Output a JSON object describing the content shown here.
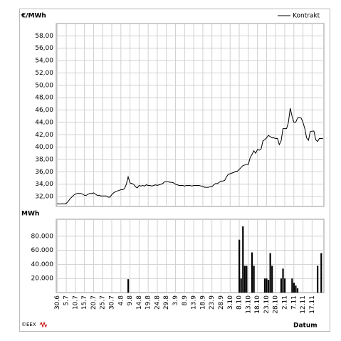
{
  "chart_data": [
    {
      "type": "line",
      "y_label": "€/MWh",
      "series": [
        {
          "name": "Kontrakt",
          "color": "#000000",
          "values": [
            30.85,
            30.8,
            30.8,
            30.85,
            30.8,
            30.9,
            31.2,
            31.6,
            31.9,
            32.2,
            32.4,
            32.5,
            32.5,
            32.5,
            32.4,
            32.2,
            32.2,
            32.4,
            32.5,
            32.5,
            32.6,
            32.4,
            32.2,
            32.2,
            32.1,
            32.1,
            32.1,
            32.1,
            31.9,
            31.9,
            32.3,
            32.6,
            32.8,
            32.9,
            33.0,
            33.1,
            33.1,
            33.3,
            34.0,
            35.2,
            34.2,
            34.1,
            34.0,
            33.6,
            33.4,
            33.8,
            33.7,
            33.8,
            33.7,
            33.9,
            33.8,
            33.8,
            33.7,
            33.8,
            33.9,
            33.8,
            33.9,
            34.0,
            34.1,
            34.4,
            34.4,
            34.4,
            34.3,
            34.3,
            34.2,
            34.0,
            33.9,
            33.8,
            33.8,
            33.8,
            33.7,
            33.8,
            33.8,
            33.8,
            33.7,
            33.8,
            33.8,
            33.8,
            33.8,
            33.7,
            33.7,
            33.5,
            33.5,
            33.5,
            33.6,
            33.6,
            33.9,
            34.1,
            34.1,
            34.3,
            34.5,
            34.5,
            34.6,
            35.2,
            35.6,
            35.7,
            35.8,
            35.9,
            36.1,
            36.1,
            36.4,
            36.7,
            37.0,
            37.1,
            37.2,
            37.2,
            38.3,
            38.8,
            39.4,
            39.0,
            39.6,
            39.5,
            39.7,
            41.0,
            41.2,
            41.5,
            41.9,
            41.7,
            41.5,
            41.5,
            41.4,
            41.4,
            40.4,
            41.0,
            43.0,
            43.0,
            43.0,
            44.0,
            46.3,
            45.0,
            44.0,
            44.0,
            44.7,
            44.8,
            44.7,
            44.0,
            43.0,
            41.5,
            41.1,
            42.5,
            42.6,
            42.6,
            41.2,
            40.9,
            41.4,
            41.4,
            41.4
          ]
        }
      ],
      "ylim": [
        30.4,
        60
      ],
      "yticks": [
        {
          "value": 32,
          "label": "32,00"
        },
        {
          "value": 34,
          "label": "34,00"
        },
        {
          "value": 36,
          "label": "36,00"
        },
        {
          "value": 38,
          "label": "38,00"
        },
        {
          "value": 40,
          "label": "40,00"
        },
        {
          "value": 42,
          "label": "42,00"
        },
        {
          "value": 44,
          "label": "44,00"
        },
        {
          "value": 46,
          "label": "46,00"
        },
        {
          "value": 48,
          "label": "48,00"
        },
        {
          "value": 50,
          "label": "50,00"
        },
        {
          "value": 52,
          "label": "52,00"
        },
        {
          "value": 54,
          "label": "54,00"
        },
        {
          "value": 56,
          "label": "56,00"
        },
        {
          "value": 58,
          "label": "58,00"
        }
      ],
      "grid": true,
      "legend": "top-right"
    },
    {
      "type": "bar",
      "y_label": "MWh",
      "x_label": "Datum",
      "color": "#000000",
      "categories": [
        "30.6",
        null,
        null,
        null,
        null,
        "5.7",
        null,
        null,
        null,
        null,
        "10.7",
        null,
        null,
        null,
        null,
        "15.7",
        null,
        null,
        null,
        null,
        "20.7",
        null,
        null,
        null,
        null,
        "25.7",
        null,
        null,
        null,
        null,
        "30.7",
        null,
        null,
        null,
        null,
        "4.8",
        null,
        null,
        null,
        null,
        "9.8",
        null,
        null,
        null,
        null,
        "14.8",
        null,
        null,
        null,
        null,
        "19.8",
        null,
        null,
        null,
        null,
        "24.8",
        null,
        null,
        null,
        null,
        "29.8",
        null,
        null,
        null,
        null,
        "3.9",
        null,
        null,
        null,
        null,
        "8.9",
        null,
        null,
        null,
        null,
        "13.9",
        null,
        null,
        null,
        null,
        "18.9",
        null,
        null,
        null,
        null,
        "23.9",
        null,
        null,
        null,
        null,
        "28.9",
        null,
        null,
        null,
        null,
        "3.10",
        null,
        null,
        null,
        null,
        "8.10",
        null,
        null,
        null,
        null,
        "13.10",
        null,
        null,
        null,
        null,
        "18.10",
        null,
        null,
        null,
        null,
        "23.10",
        null,
        null,
        null,
        null,
        "28.10",
        null,
        null,
        null,
        null,
        "2.11",
        null,
        null,
        null,
        null,
        "7.11",
        null,
        null,
        null,
        null,
        "12.11",
        null,
        null,
        null,
        null,
        "17.11",
        null,
        null,
        null,
        null,
        null,
        null
      ],
      "values": [
        null,
        null,
        null,
        null,
        null,
        null,
        null,
        null,
        null,
        null,
        null,
        null,
        null,
        null,
        null,
        null,
        null,
        null,
        null,
        null,
        null,
        null,
        null,
        null,
        null,
        null,
        null,
        null,
        null,
        null,
        null,
        null,
        null,
        null,
        null,
        null,
        null,
        null,
        null,
        19000,
        null,
        null,
        null,
        null,
        null,
        null,
        null,
        null,
        null,
        null,
        null,
        null,
        null,
        null,
        null,
        null,
        null,
        null,
        null,
        null,
        null,
        null,
        null,
        null,
        null,
        null,
        null,
        null,
        null,
        null,
        null,
        null,
        null,
        null,
        null,
        null,
        null,
        null,
        null,
        null,
        null,
        null,
        null,
        null,
        null,
        null,
        null,
        null,
        null,
        null,
        null,
        null,
        null,
        null,
        null,
        null,
        null,
        null,
        null,
        null,
        75000,
        20000,
        94000,
        38000,
        38000,
        null,
        null,
        57000,
        38000,
        null,
        null,
        null,
        null,
        null,
        20000,
        20000,
        18000,
        56000,
        38000,
        null,
        null,
        null,
        null,
        20000,
        34000,
        20000,
        null,
        null,
        null,
        20000,
        14000,
        10000,
        6000,
        null,
        null,
        null,
        null,
        null,
        null,
        null,
        null,
        null,
        null,
        38000,
        null,
        56000,
        null
      ],
      "ylim": [
        0,
        104000
      ],
      "yticks": [
        {
          "value": 20000,
          "label": "20.000"
        },
        {
          "value": 40000,
          "label": "40.000"
        },
        {
          "value": 60000,
          "label": "60.000"
        },
        {
          "value": 80000,
          "label": "80.000"
        }
      ],
      "grid": true
    }
  ],
  "logo": "©EEX"
}
